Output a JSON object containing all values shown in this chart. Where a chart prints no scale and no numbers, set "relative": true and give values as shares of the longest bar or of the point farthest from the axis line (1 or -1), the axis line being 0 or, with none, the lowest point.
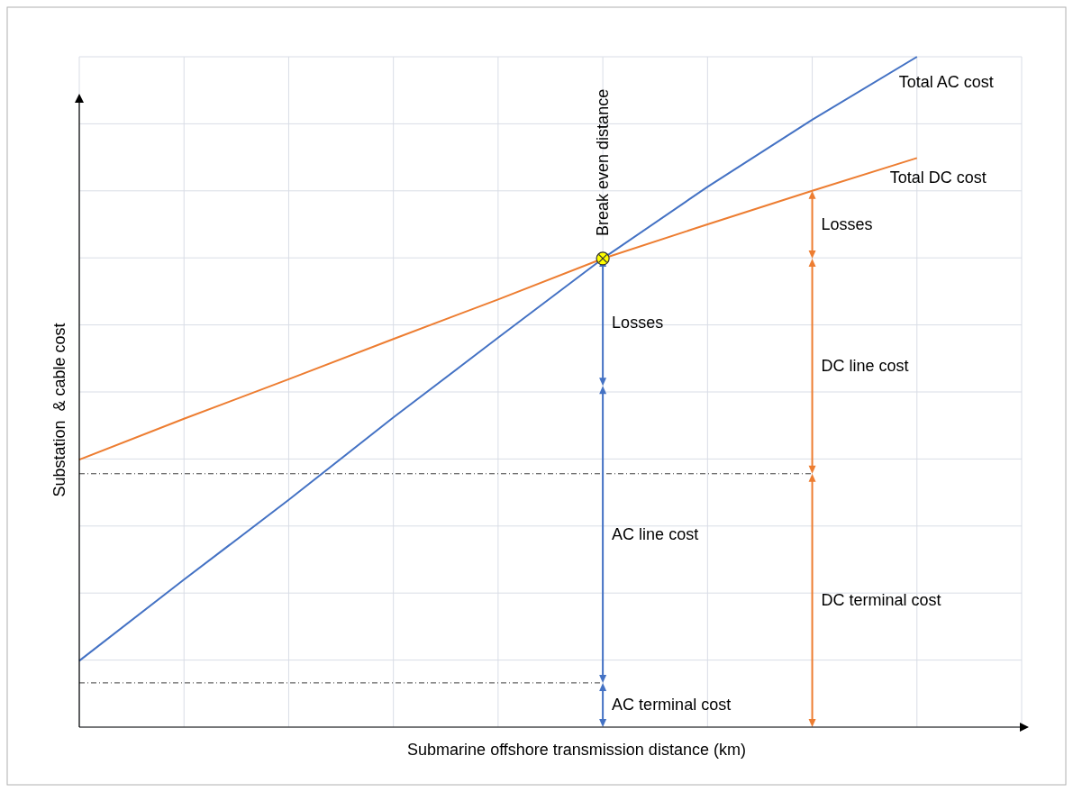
{
  "chart_data": {
    "type": "line",
    "relative": true,
    "xlabel": "Submarine offshore transmission distance (km)",
    "ylabel": "Substation  & cable cost",
    "categories": [
      null,
      null,
      null,
      null,
      null,
      null,
      null,
      null,
      null
    ],
    "series": [
      {
        "name": "Total AC cost",
        "color": "#4472c4",
        "values": [
          0.099,
          0.22,
          0.339,
          0.462,
          0.581,
          0.699,
          0.806,
          0.906,
          1
        ]
      },
      {
        "name": "Total DC cost",
        "color": "#ed7d31",
        "values": [
          0.399,
          0.46,
          0.519,
          0.579,
          0.638,
          0.699,
          0.75,
          0.8,
          0.849
        ]
      }
    ],
    "ref_lines": [
      {
        "axis": "y",
        "value": 0.378,
        "color": "#404040",
        "line_style": "dotted"
      },
      {
        "axis": "y",
        "value": 0.066,
        "color": "#404040",
        "line_style": "dotted"
      }
    ],
    "annotations": [
      "Break even distance",
      "Losses",
      "AC line cost",
      "AC terminal cost",
      "Losses",
      "DC line cost",
      "DC terminal cost"
    ],
    "grid": true,
    "legend": false,
    "marker": "none",
    "line_style": "solid"
  }
}
